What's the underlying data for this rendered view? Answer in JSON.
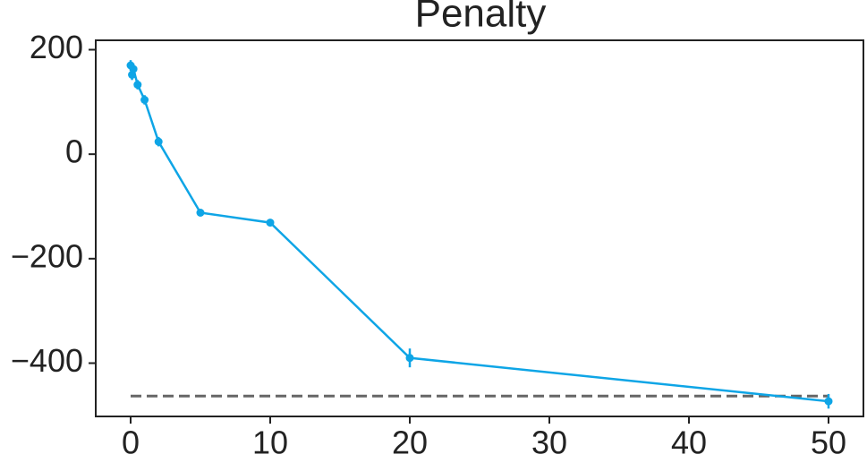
{
  "chart_data": {
    "type": "line",
    "title": "Penalty",
    "series": [
      {
        "color": "#0ea5e6",
        "x": [
          0,
          0.1,
          0.2,
          0.5,
          1,
          2,
          5,
          10,
          20,
          50
        ],
        "values": [
          170,
          152,
          163,
          133,
          104,
          24,
          -112,
          -131,
          -390,
          -473
        ],
        "errors": [
          10,
          10,
          10,
          9,
          9,
          9,
          4,
          4,
          18,
          14
        ]
      }
    ],
    "reference_line": {
      "y": -463,
      "color": "#666666",
      "style": "dashed"
    },
    "xlim": [
      -2.5,
      52.5
    ],
    "xticks": [
      0,
      10,
      20,
      30,
      40,
      50
    ],
    "ylim": [
      -502,
      218
    ],
    "yticks": [
      {
        "value": 200,
        "label": "200"
      },
      {
        "value": 0,
        "label": "0"
      },
      {
        "value": -200,
        "label": "−200"
      },
      {
        "value": -400,
        "label": "−400"
      }
    ]
  }
}
